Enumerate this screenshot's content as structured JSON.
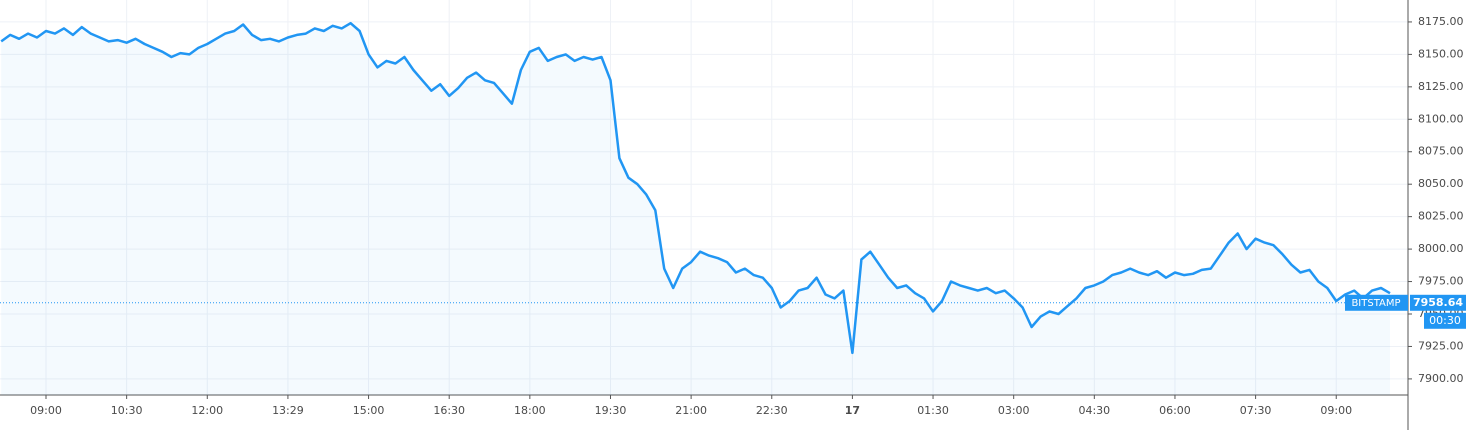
{
  "chart_data": {
    "type": "line",
    "categories": [
      null,
      null,
      null,
      null,
      null,
      "09:00",
      null,
      null,
      null,
      null,
      null,
      null,
      null,
      null,
      "10:30",
      null,
      null,
      null,
      null,
      null,
      null,
      null,
      null,
      "12:00",
      null,
      null,
      null,
      null,
      null,
      null,
      null,
      null,
      "13:29",
      null,
      null,
      null,
      null,
      null,
      null,
      null,
      null,
      "15:00",
      null,
      null,
      null,
      null,
      null,
      null,
      null,
      null,
      "16:30",
      null,
      null,
      null,
      null,
      null,
      null,
      null,
      null,
      "18:00",
      null,
      null,
      null,
      null,
      null,
      null,
      null,
      null,
      "19:30",
      null,
      null,
      null,
      null,
      null,
      null,
      null,
      null,
      "21:00",
      null,
      null,
      null,
      null,
      null,
      null,
      null,
      null,
      "22:30",
      null,
      null,
      null,
      null,
      null,
      null,
      null,
      null,
      "17",
      null,
      null,
      null,
      null,
      null,
      null,
      null,
      null,
      "01:30",
      null,
      null,
      null,
      null,
      null,
      null,
      null,
      null,
      "03:00",
      null,
      null,
      null,
      null,
      null,
      null,
      null,
      null,
      "04:30",
      null,
      null,
      null,
      null,
      null,
      null,
      null,
      null,
      "06:00",
      null,
      null,
      null,
      null,
      null,
      null,
      null,
      null,
      "07:30",
      null,
      null,
      null,
      null,
      null,
      null,
      null,
      null,
      "09:00",
      null,
      null,
      null,
      null,
      null,
      null
    ],
    "series": [
      {
        "name": "BITSTAMP",
        "color": "#2196f3",
        "values": [
          8160,
          8165,
          8162,
          8166,
          8163,
          8168,
          8166,
          8170,
          8165,
          8171,
          8166,
          8163,
          8160,
          8161,
          8159,
          8162,
          8158,
          8155,
          8152,
          8148,
          8151,
          8150,
          8155,
          8158,
          8162,
          8166,
          8168,
          8173,
          8165,
          8161,
          8162,
          8160,
          8163,
          8165,
          8166,
          8170,
          8168,
          8172,
          8170,
          8174,
          8168,
          8150,
          8140,
          8145,
          8143,
          8148,
          8138,
          8130,
          8122,
          8127,
          8118,
          8124,
          8132,
          8136,
          8130,
          8128,
          8120,
          8112,
          8138,
          8152,
          8155,
          8145,
          8148,
          8150,
          8145,
          8148,
          8146,
          8148,
          8130,
          8070,
          8055,
          8050,
          8042,
          8030,
          7985,
          7970,
          7985,
          7990,
          7998,
          7995,
          7993,
          7990,
          7982,
          7985,
          7980,
          7978,
          7970,
          7955,
          7960,
          7968,
          7970,
          7978,
          7965,
          7962,
          7968,
          7920,
          7992,
          7998,
          7988,
          7978,
          7970,
          7972,
          7966,
          7962,
          7952,
          7960,
          7975,
          7972,
          7970,
          7968,
          7970,
          7966,
          7968,
          7962,
          7955,
          7940,
          7948,
          7952,
          7950,
          7956,
          7962,
          7970,
          7972,
          7975,
          7980,
          7982,
          7985,
          7982,
          7980,
          7983,
          7978,
          7982,
          7980,
          7981,
          7984,
          7985,
          7995,
          8005,
          8012,
          8000,
          8008,
          8005,
          8003,
          7996,
          7988,
          7982,
          7984,
          7975,
          7970,
          7960,
          7965,
          7968,
          7962,
          7968,
          7970,
          7966
        ]
      }
    ],
    "last_price": 7958.64,
    "countdown": "00:30",
    "ylim": [
      7887.6,
      8191.9
    ],
    "yticks": [
      {
        "value": 7900,
        "label": "7900.00"
      },
      {
        "value": 7925,
        "label": "7925.00"
      },
      {
        "value": 7950,
        "label": "7950.00"
      },
      {
        "value": 7975,
        "label": "7975.00"
      },
      {
        "value": 8000,
        "label": "8000.00"
      },
      {
        "value": 8025,
        "label": "8025.00"
      },
      {
        "value": 8050,
        "label": "8050.00"
      },
      {
        "value": 8075,
        "label": "8075.00"
      },
      {
        "value": 8100,
        "label": "8100.00"
      },
      {
        "value": 8125,
        "label": "8125.00"
      },
      {
        "value": 8150,
        "label": "8150.00"
      },
      {
        "value": 8175,
        "label": "8175.00"
      }
    ],
    "grid": true
  }
}
